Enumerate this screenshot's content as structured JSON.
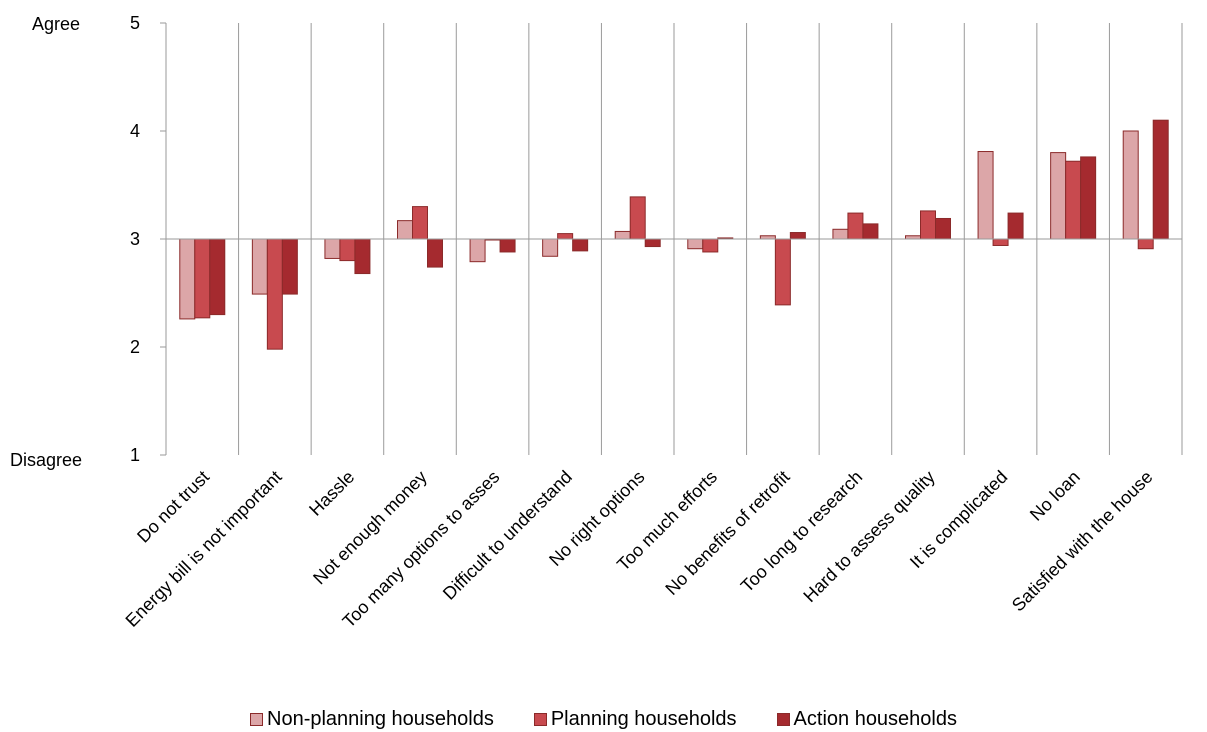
{
  "chart_data": {
    "type": "bar",
    "ylim": [
      1,
      5
    ],
    "yticks": [
      1,
      2,
      3,
      4,
      5
    ],
    "baseline": 3,
    "ylabel_top": "Agree",
    "ylabel_bottom": "Disagree",
    "categories": [
      "Do not trust",
      "Energy bill is not important",
      "Hassle",
      "Not enough money",
      "Too many options to asses",
      "Difficult to understand",
      "No right options",
      "Too much efforts",
      "No benefits of retrofit",
      "Too long to research",
      "Hard to assess quality",
      "It is complicated",
      "No loan",
      "Satisfied with the house"
    ],
    "series": [
      {
        "name": "Non-planning households",
        "color": "#dca6a8",
        "values": [
          2.26,
          2.49,
          2.82,
          3.17,
          2.79,
          2.84,
          3.07,
          2.91,
          3.03,
          3.09,
          3.03,
          3.81,
          3.8,
          4.0
        ]
      },
      {
        "name": "Planning households",
        "color": "#c84a4f",
        "values": [
          2.27,
          1.98,
          2.8,
          3.3,
          3.0,
          3.05,
          3.39,
          2.88,
          2.39,
          3.24,
          3.26,
          2.94,
          3.72,
          2.91
        ]
      },
      {
        "name": "Action households",
        "color": "#a52a2f",
        "values": [
          2.3,
          2.49,
          2.68,
          2.74,
          2.88,
          2.89,
          2.93,
          3.01,
          3.06,
          3.14,
          3.19,
          3.24,
          3.76,
          4.1
        ]
      }
    ],
    "legend_position": "bottom",
    "grid": "vertical category separators"
  }
}
